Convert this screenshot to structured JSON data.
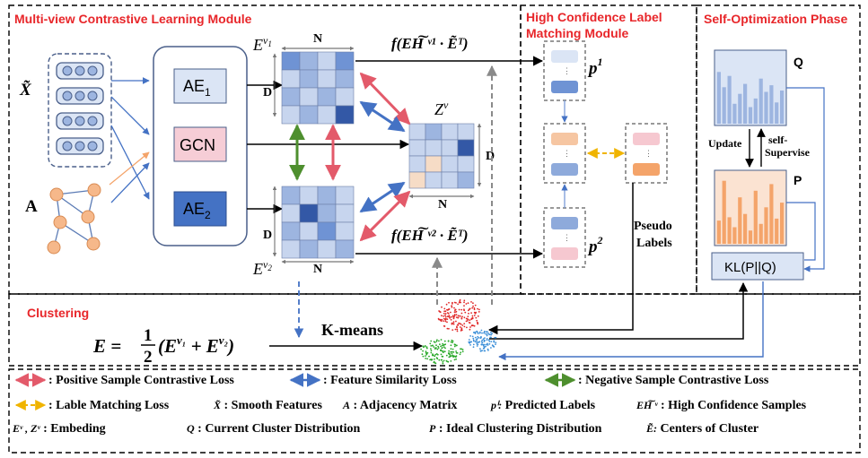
{
  "colors": {
    "title_red": "#e8262a",
    "blue_arrow": "#4472c4",
    "red_arrow": "#e35a6a",
    "green_arrow": "#4e8f2e",
    "yellow_arrow": "#f0b400",
    "orange_arrow": "#f4a46a",
    "box_blue": "#4472c4",
    "box_light": "#dbe5f5",
    "pink": "#f6cdd6",
    "orange": "#f6b88a"
  },
  "modules": {
    "mvcl_title": "Multi-view Contrastive Learning Module",
    "hclm_title_line1": "High Confidence Label",
    "hclm_title_line2": "Matching Module",
    "sop_title": "Self-Optimization Phase",
    "clustering_title": "Clustering"
  },
  "inputs": {
    "x_label": "X̃",
    "a_label": "A"
  },
  "encoders": {
    "ae1": "AE",
    "ae1_sub": "1",
    "gcn": "GCN",
    "ae2": "AE",
    "ae2_sub": "2"
  },
  "matrices": {
    "ev1_base": "E",
    "ev1_sup": "v",
    "ev1_subsup": "1",
    "ev2_base": "E",
    "ev2_sup": "v",
    "ev2_subsup": "2",
    "zv_base": "Z",
    "zv_sup": "v",
    "dim_n": "N",
    "dim_d": "D"
  },
  "formulas": {
    "f_top": "f(EH͠ ᵛ¹ · Ẽᵀ)",
    "f_bottom": "f(EH͠ ᵛ² · Ẽᵀ)"
  },
  "label_matching": {
    "p1": "p",
    "p1_sup": "1",
    "p2": "p",
    "p2_sup": "2",
    "pseudo_line1": "Pseudo",
    "pseudo_line2": "Labels"
  },
  "self_opt": {
    "q_label": "Q",
    "p_label": "P",
    "update": "Update",
    "self_line1": "self-",
    "self_line2": "Supervise",
    "kl": "KL(P||Q)",
    "q_bars": [
      0.78,
      0.55,
      0.72,
      0.3,
      0.45,
      0.6,
      0.25,
      0.38,
      0.68,
      0.48,
      0.58,
      0.32,
      0.5
    ],
    "p_bars": [
      0.35,
      0.95,
      0.4,
      0.25,
      0.7,
      0.45,
      0.2,
      0.8,
      0.3,
      0.55,
      0.9,
      0.38,
      0.62
    ]
  },
  "clustering": {
    "formula_lhs": "E =",
    "formula_half_num": "1",
    "formula_half_den": "2",
    "formula_rhs": "(E",
    "formula_rhs_sup1": "v₁",
    "formula_plus": " + E",
    "formula_rhs_sup2": "v₂",
    "formula_close": ")",
    "kmeans": "K-means"
  },
  "legend": {
    "items": [
      {
        "kind": "red-dbl",
        "text": ": Positive Sample Contrastive Loss"
      },
      {
        "kind": "blue-dbl",
        "text": ": Feature Similarity Loss"
      },
      {
        "kind": "green-dbl",
        "text": ": Negative Sample Contrastive Loss"
      },
      {
        "kind": "yellow-dash",
        "text": ": Lable Matching Loss"
      },
      {
        "kind": "sym",
        "sym": "X̃",
        "text": " : Smooth Features"
      },
      {
        "kind": "sym",
        "sym": "A",
        "text": " : Adjacency Matrix"
      },
      {
        "kind": "sym",
        "sym": "pⁱ:",
        "text": "  Predicted Labels"
      },
      {
        "kind": "sym",
        "sym": "EH͠ ᵛ",
        "text": " :  High Confidence Samples"
      },
      {
        "kind": "sym",
        "sym": "Eᵛ , Zᵛ",
        "text": " : Embeding"
      },
      {
        "kind": "sym",
        "sym": "Q",
        "text": " : Current Cluster Distribution"
      },
      {
        "kind": "sym",
        "sym": "P",
        "text": " : Ideal Clustering Distribution"
      },
      {
        "kind": "sym",
        "sym": "Ẽ:",
        "text": "  Centers of Cluster"
      }
    ]
  }
}
